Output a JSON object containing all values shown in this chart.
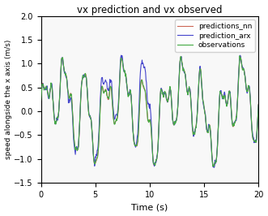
{
  "title": "vx prediction and vx observed",
  "xlabel": "Time (s)",
  "ylabel": "speed alongside the x axis (m/s)",
  "xlim": [
    0,
    20
  ],
  "ylim": [
    -1.5,
    2.0
  ],
  "xticks": [
    0,
    5,
    10,
    15,
    20
  ],
  "yticks": [
    -1.5,
    -1.0,
    -0.5,
    0.0,
    0.5,
    1.0,
    1.5,
    2.0
  ],
  "color_nn": "#44aa44",
  "color_arx": "#4444cc",
  "color_obs": "#cc6655",
  "legend_labels": [
    "predictions_nn",
    "prediction_arx",
    "observations"
  ],
  "linewidth": 0.8,
  "figsize": [
    3.31,
    2.66
  ],
  "dpi": 100
}
